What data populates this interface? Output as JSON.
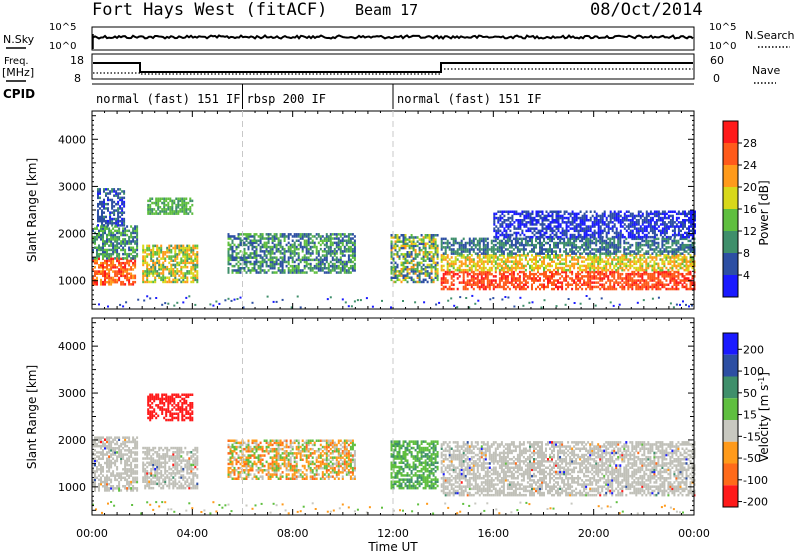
{
  "header": {
    "station": "Fort Hays West (fitACF)",
    "beam": "Beam 17",
    "date": "08/Oct/2014"
  },
  "summary_panels": {
    "nsky": {
      "label": "N.Sky",
      "ticks": [
        "10^5",
        "10^0"
      ]
    },
    "nsearch": {
      "label": "N.Search",
      "ticks": [
        "10^5",
        "10^0"
      ]
    },
    "freq": {
      "label_line1": "Freq.",
      "label_line2": "[MHz]",
      "ticks": [
        "18",
        "8"
      ]
    },
    "nave": {
      "label": "Nave",
      "ticks": [
        "60",
        "0"
      ]
    },
    "cpid": {
      "label": "CPID"
    }
  },
  "cpid_segments": [
    {
      "start_hour": 0,
      "end_hour": 6,
      "label": "normal (fast) 151 IF"
    },
    {
      "start_hour": 6,
      "end_hour": 12,
      "label": "rbsp 200 IF"
    },
    {
      "start_hour": 12,
      "end_hour": 24,
      "label": "normal (fast) 151 IF"
    }
  ],
  "colors": {
    "power": [
      "#1a1aff",
      "#2d4fa3",
      "#3f8f6b",
      "#5fbf3f",
      "#d8d81a",
      "#ff9a1a",
      "#ff5a1a",
      "#ff1a1a"
    ],
    "velocity": [
      "#1a1aff",
      "#2d4fa3",
      "#3f8f6b",
      "#5fbf3f",
      "#c8c8c0",
      "#ff9a1a",
      "#ff6a1a",
      "#ff1a1a"
    ],
    "ground_scatter": "#c0c0b8"
  },
  "chart_data": [
    {
      "type": "heatmap",
      "name": "power",
      "ylabel": "Slant Range [km]",
      "yticks": [
        "1000",
        "2000",
        "3000",
        "4000"
      ],
      "ylim": [
        400,
        4600
      ],
      "xlim": [
        0,
        24
      ],
      "colorbar_label": "Power [dB]",
      "colorbar_ticks": [
        "4",
        "8",
        "12",
        "16",
        "20",
        "24",
        "28"
      ],
      "colorbar_range": [
        0,
        32
      ],
      "regions": [
        {
          "t0": 0.0,
          "t1": 1.7,
          "r0": 950,
          "r1": 1500,
          "v0": 22,
          "v1": 30
        },
        {
          "t0": 0.0,
          "t1": 1.8,
          "r0": 1500,
          "r1": 2200,
          "v0": 6,
          "v1": 16
        },
        {
          "t0": 0.2,
          "t1": 1.3,
          "r0": 2200,
          "r1": 3000,
          "v0": 3,
          "v1": 9
        },
        {
          "t0": 2.0,
          "t1": 4.2,
          "r0": 1000,
          "r1": 1800,
          "v0": 10,
          "v1": 24
        },
        {
          "t0": 2.2,
          "t1": 4.0,
          "r0": 2450,
          "r1": 2800,
          "v0": 10,
          "v1": 16
        },
        {
          "t0": 5.4,
          "t1": 10.5,
          "r0": 1200,
          "r1": 2050,
          "v0": 4,
          "v1": 16
        },
        {
          "t0": 11.9,
          "t1": 13.8,
          "r0": 1000,
          "r1": 2000,
          "v0": 4,
          "v1": 22
        },
        {
          "t0": 13.9,
          "t1": 24.0,
          "r0": 850,
          "r1": 1250,
          "v0": 24,
          "v1": 30
        },
        {
          "t0": 13.9,
          "t1": 24.0,
          "r0": 1250,
          "r1": 1600,
          "v0": 14,
          "v1": 24
        },
        {
          "t0": 13.9,
          "t1": 24.0,
          "r0": 1600,
          "r1": 1950,
          "v0": 5,
          "v1": 12
        },
        {
          "t0": 16.0,
          "t1": 24.0,
          "r0": 1950,
          "r1": 2500,
          "v0": 2,
          "v1": 6
        }
      ]
    },
    {
      "type": "heatmap",
      "name": "velocity",
      "xlabel": "Time UT",
      "ylabel": "Slant Range [km]",
      "yticks": [
        "1000",
        "2000",
        "3000",
        "4000"
      ],
      "ylim": [
        400,
        4600
      ],
      "xlim": [
        0,
        24
      ],
      "xticks": [
        "00:00",
        "04:00",
        "08:00",
        "12:00",
        "16:00",
        "20:00",
        "00:00"
      ],
      "colorbar_label": "Velocity [m s^-1]",
      "colorbar_ticks": [
        "200",
        "100",
        "50",
        "15",
        "-15",
        "-50",
        "-100",
        "-200"
      ],
      "regions": [
        {
          "t0": 0.0,
          "t1": 1.8,
          "r0": 950,
          "r1": 2100,
          "kind": "ground"
        },
        {
          "t0": 2.0,
          "t1": 4.2,
          "r0": 1000,
          "r1": 1900,
          "kind": "ground"
        },
        {
          "t0": 2.2,
          "t1": 4.0,
          "r0": 2450,
          "r1": 3000,
          "kind": "flow",
          "v": -200
        },
        {
          "t0": 5.4,
          "t1": 10.5,
          "r0": 1200,
          "r1": 2050,
          "kind": "mixed"
        },
        {
          "t0": 11.9,
          "t1": 13.8,
          "r0": 1000,
          "r1": 2000,
          "kind": "green"
        },
        {
          "t0": 13.9,
          "t1": 24.0,
          "r0": 850,
          "r1": 2000,
          "kind": "ground"
        }
      ]
    }
  ]
}
